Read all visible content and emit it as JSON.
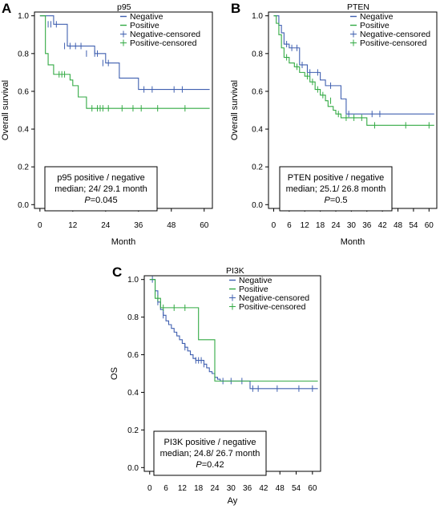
{
  "chart_data": [
    {
      "type": "line",
      "panel_label": "A",
      "xlabel": "Month",
      "ylabel": "Overall survival",
      "xlim": [
        -2,
        63
      ],
      "ylim": [
        -0.02,
        1.02
      ],
      "xticks": [
        0,
        12,
        24,
        36,
        48,
        60
      ],
      "yticks": [
        0.0,
        0.2,
        0.4,
        0.6,
        0.8,
        1.0
      ],
      "legend_title": "p95",
      "legend": [
        "Negative",
        "Positive",
        "Negative-censored",
        "Positive-censored"
      ],
      "annotation": {
        "line1": "p95 positive / negative",
        "line2": "median; 24/ 29.1 month",
        "p_label": "P",
        "p_value": "=0.045"
      },
      "series": [
        {
          "name": "Negative",
          "color": "#4060b0",
          "x": [
            0,
            2,
            5,
            6,
            10,
            12,
            15,
            17,
            20,
            22,
            24,
            29,
            32,
            36,
            62
          ],
          "y": [
            1.0,
            1.0,
            0.955,
            0.955,
            0.84,
            0.84,
            0.84,
            0.84,
            0.8,
            0.8,
            0.75,
            0.67,
            0.67,
            0.61,
            0.61
          ],
          "censored_x": [
            3,
            4,
            6,
            9,
            11,
            13,
            15,
            17,
            20,
            21,
            23,
            25,
            38,
            41,
            49,
            52
          ],
          "censored_y": [
            0.955,
            0.955,
            0.955,
            0.84,
            0.84,
            0.84,
            0.84,
            0.8,
            0.8,
            0.8,
            0.75,
            0.75,
            0.61,
            0.61,
            0.61,
            0.61
          ]
        },
        {
          "name": "Positive",
          "color": "#33aa44",
          "x": [
            0,
            2,
            3,
            5,
            10,
            11,
            12,
            14,
            17,
            18,
            62
          ],
          "y": [
            1.0,
            0.8,
            0.74,
            0.69,
            0.69,
            0.66,
            0.63,
            0.57,
            0.51,
            0.51,
            0.51
          ],
          "censored_x": [
            7,
            8,
            9,
            19,
            21,
            22,
            23,
            25,
            30,
            34,
            37,
            43,
            53
          ],
          "censored_y": [
            0.69,
            0.69,
            0.69,
            0.51,
            0.51,
            0.51,
            0.51,
            0.51,
            0.51,
            0.51,
            0.51,
            0.51,
            0.51
          ]
        }
      ]
    },
    {
      "type": "line",
      "panel_label": "B",
      "xlabel": "Month",
      "ylabel": "Overall survival",
      "xlim": [
        -2,
        63
      ],
      "ylim": [
        -0.02,
        1.02
      ],
      "xticks": [
        0,
        6,
        12,
        18,
        24,
        30,
        36,
        42,
        48,
        54,
        60
      ],
      "yticks": [
        0.0,
        0.2,
        0.4,
        0.6,
        0.8,
        1.0
      ],
      "legend_title": "PTEN",
      "legend": [
        "Negative",
        "Positive",
        "Negative-censored",
        "Positive-censored"
      ],
      "annotation": {
        "line1": "PTEN positive / negative",
        "line2": "median; 25.1/ 26.8 month",
        "p_label": "P",
        "p_value": "=0.5"
      },
      "series": [
        {
          "name": "Negative",
          "color": "#4060b0",
          "x": [
            0,
            2,
            3,
            4,
            6,
            10,
            12,
            13,
            16,
            18,
            19,
            20,
            24,
            25,
            26,
            28,
            62
          ],
          "y": [
            1.0,
            0.95,
            0.91,
            0.85,
            0.83,
            0.74,
            0.74,
            0.7,
            0.7,
            0.66,
            0.66,
            0.63,
            0.63,
            0.63,
            0.56,
            0.48,
            0.48
          ],
          "censored_x": [
            5,
            7,
            9,
            11,
            14,
            17,
            22,
            29,
            38,
            41
          ],
          "censored_y": [
            0.85,
            0.83,
            0.83,
            0.74,
            0.7,
            0.7,
            0.63,
            0.48,
            0.48,
            0.48
          ]
        },
        {
          "name": "Positive",
          "color": "#33aa44",
          "x": [
            0,
            1,
            2,
            3,
            4,
            6,
            8,
            10,
            12,
            14,
            16,
            18,
            20,
            21,
            23,
            24,
            26,
            36,
            62
          ],
          "y": [
            1.0,
            0.96,
            0.9,
            0.83,
            0.78,
            0.75,
            0.73,
            0.7,
            0.68,
            0.65,
            0.61,
            0.58,
            0.55,
            0.52,
            0.5,
            0.48,
            0.46,
            0.42,
            0.42
          ],
          "censored_x": [
            5,
            9,
            13,
            15,
            17,
            19,
            22,
            25,
            28,
            31,
            34,
            39,
            51,
            60
          ],
          "censored_y": [
            0.78,
            0.73,
            0.68,
            0.65,
            0.61,
            0.58,
            0.55,
            0.48,
            0.46,
            0.46,
            0.46,
            0.42,
            0.42,
            0.42
          ]
        }
      ]
    },
    {
      "type": "line",
      "panel_label": "C",
      "xlabel": "Ay",
      "ylabel": "OS",
      "xlim": [
        -2,
        63
      ],
      "ylim": [
        -0.02,
        1.02
      ],
      "xticks": [
        0,
        6,
        12,
        18,
        24,
        30,
        36,
        42,
        48,
        54,
        60
      ],
      "yticks": [
        0.0,
        0.2,
        0.4,
        0.6,
        0.8,
        1.0
      ],
      "legend_title": "PI3K",
      "legend": [
        "Negative",
        "Positive",
        "Negative-censored",
        "Positive-censored"
      ],
      "annotation": {
        "line1": "PI3K positive / negative",
        "line2": "median; 24.8/ 26.7 month",
        "p_label": "P",
        "p_value": "=0.42"
      },
      "series": [
        {
          "name": "Negative",
          "color": "#4060b0",
          "x": [
            0,
            2,
            3,
            4,
            5,
            6,
            7,
            8,
            9,
            10,
            11,
            12,
            13,
            14,
            15,
            16,
            17,
            20,
            21,
            22,
            23,
            24,
            25,
            26,
            28,
            37,
            62
          ],
          "y": [
            1.0,
            0.94,
            0.88,
            0.84,
            0.81,
            0.78,
            0.76,
            0.74,
            0.72,
            0.7,
            0.68,
            0.66,
            0.64,
            0.62,
            0.6,
            0.58,
            0.57,
            0.55,
            0.53,
            0.51,
            0.5,
            0.48,
            0.47,
            0.46,
            0.46,
            0.42,
            0.42
          ],
          "censored_x": [
            1,
            3,
            5,
            13,
            17,
            18,
            19,
            20,
            27,
            30,
            34,
            38,
            40,
            47,
            55,
            60
          ],
          "censored_y": [
            1.0,
            0.88,
            0.81,
            0.64,
            0.57,
            0.57,
            0.57,
            0.55,
            0.46,
            0.46,
            0.46,
            0.42,
            0.42,
            0.42,
            0.42,
            0.42
          ]
        },
        {
          "name": "Positive",
          "color": "#33aa44",
          "x": [
            0,
            2,
            4,
            6,
            17,
            18,
            23,
            24,
            25,
            62
          ],
          "y": [
            1.0,
            0.9,
            0.85,
            0.85,
            0.85,
            0.68,
            0.68,
            0.46,
            0.46,
            0.46
          ],
          "censored_x": [
            3,
            5,
            9,
            13
          ],
          "censored_y": [
            0.9,
            0.85,
            0.85,
            0.85
          ]
        }
      ]
    }
  ]
}
